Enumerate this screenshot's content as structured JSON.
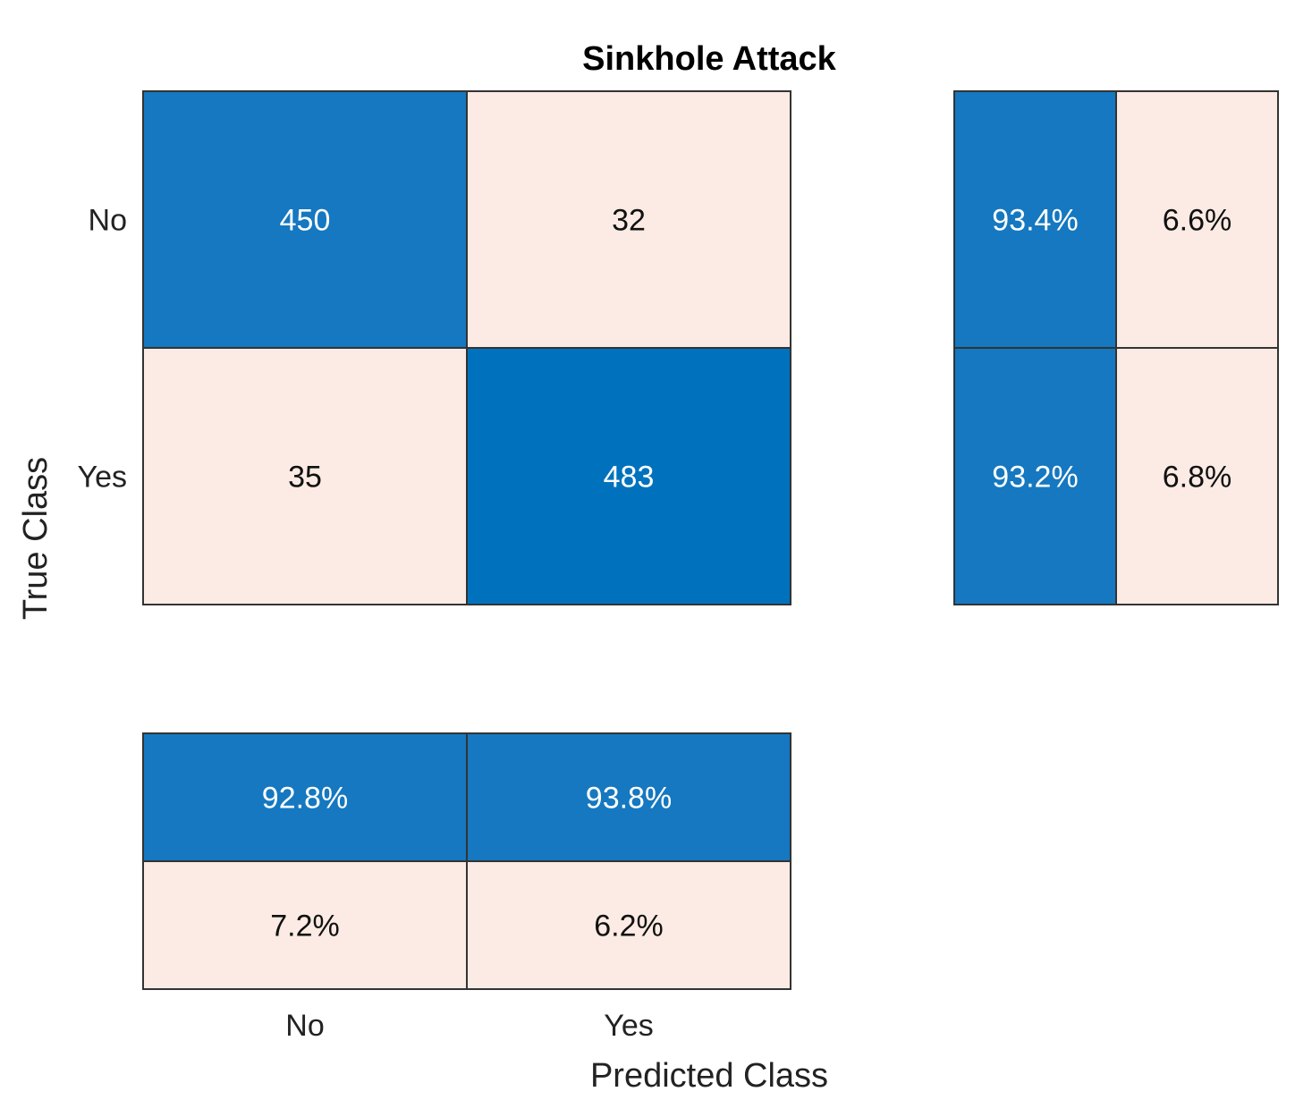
{
  "chart_data": {
    "type": "heatmap",
    "title": "Sinkhole Attack",
    "xlabel": "Predicted Class",
    "ylabel": "True Class",
    "classes": [
      "No",
      "Yes"
    ],
    "matrix": [
      [
        450,
        32
      ],
      [
        35,
        483
      ]
    ],
    "matrix_labels": [
      [
        "450",
        "32"
      ],
      [
        "35",
        "483"
      ]
    ],
    "row_summary": [
      [
        "93.4%",
        "6.6%"
      ],
      [
        "93.2%",
        "6.8%"
      ]
    ],
    "row_summary_values": [
      [
        93.4,
        6.6
      ],
      [
        93.2,
        6.8
      ]
    ],
    "column_summary": [
      [
        "92.8%",
        "93.8%"
      ],
      [
        "7.2%",
        "6.2%"
      ]
    ],
    "column_summary_values": [
      [
        92.8,
        93.8
      ],
      [
        7.2,
        6.2
      ]
    ],
    "colors": {
      "diagonal_high": "#0072bd",
      "diagonal": "#1578c0",
      "off_diagonal": "#fbebe4",
      "border": "#333333",
      "text_light": "#ffffff",
      "text_dark": "#111111"
    }
  }
}
